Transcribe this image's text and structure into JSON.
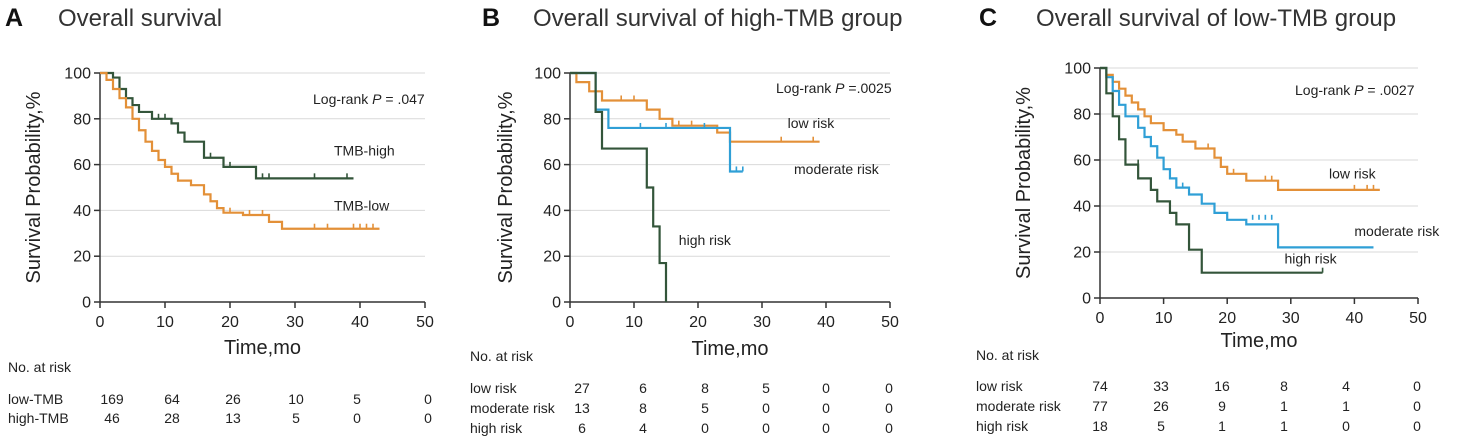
{
  "colors": {
    "orange": "#E39038",
    "green": "#33553A",
    "blue": "#2F9FD6",
    "axis": "#333333",
    "grid": "#D9D9D9"
  },
  "chart_data": [
    {
      "type": "line",
      "panel_letter": "A",
      "title": "Overall survival",
      "xlabel": "Time,mo",
      "ylabel": "Survival Probability,%",
      "xlim": [
        0,
        50
      ],
      "ylim": [
        0,
        100
      ],
      "xticks": [
        "0",
        "10",
        "20",
        "30",
        "40",
        "50"
      ],
      "yticks": [
        "0",
        "20",
        "40",
        "60",
        "80",
        "100"
      ],
      "grid": true,
      "pvalue_label": "Log-rank ",
      "pvalue_p": "P",
      "pvalue_value": " = .047",
      "series": [
        {
          "name": "TMB-high",
          "color": "#33553A",
          "label_at": [
            36,
            64
          ],
          "steps": [
            [
              0,
              100
            ],
            [
              2,
              98
            ],
            [
              3,
              93
            ],
            [
              4,
              89
            ],
            [
              5,
              86
            ],
            [
              6,
              83
            ],
            [
              8,
              80
            ],
            [
              11,
              78
            ],
            [
              12,
              74
            ],
            [
              13,
              70
            ],
            [
              16,
              63
            ],
            [
              19,
              59
            ],
            [
              24,
              54
            ],
            [
              39,
              54
            ]
          ],
          "censors": [
            [
              9,
              80
            ],
            [
              10,
              80
            ],
            [
              17,
              63
            ],
            [
              20,
              59
            ],
            [
              25,
              54
            ],
            [
              26,
              54
            ],
            [
              33,
              54
            ],
            [
              38,
              54
            ]
          ]
        },
        {
          "name": "TMB-low",
          "color": "#E39038",
          "label_at": [
            36,
            40
          ],
          "steps": [
            [
              0,
              100
            ],
            [
              1,
              97
            ],
            [
              2,
              93
            ],
            [
              3,
              89
            ],
            [
              4,
              85
            ],
            [
              5,
              80
            ],
            [
              6,
              75
            ],
            [
              7,
              70
            ],
            [
              8,
              66
            ],
            [
              9,
              62
            ],
            [
              10,
              59
            ],
            [
              11,
              56
            ],
            [
              12,
              53
            ],
            [
              14,
              51
            ],
            [
              16,
              47
            ],
            [
              17,
              44
            ],
            [
              18,
              41
            ],
            [
              19,
              39
            ],
            [
              22,
              38
            ],
            [
              26,
              35
            ],
            [
              28,
              32
            ],
            [
              43,
              32
            ]
          ],
          "censors": [
            [
              20,
              39
            ],
            [
              23,
              38
            ],
            [
              25,
              38
            ],
            [
              33,
              32
            ],
            [
              35,
              32
            ],
            [
              39,
              32
            ],
            [
              40,
              32
            ],
            [
              41,
              32
            ],
            [
              42,
              32
            ]
          ]
        }
      ],
      "risk_table": {
        "header": "No. at risk",
        "rows": [
          {
            "label": "low-TMB",
            "values": [
              "169",
              "64",
              "26",
              "10",
              "5",
              "0"
            ]
          },
          {
            "label": "high-TMB",
            "values": [
              "46",
              "28",
              "13",
              "5",
              "0",
              "0"
            ]
          }
        ]
      }
    },
    {
      "type": "line",
      "panel_letter": "B",
      "title": "Overall survival of high-TMB group",
      "xlabel": "Time,mo",
      "ylabel": "Survival Probability,%",
      "xlim": [
        0,
        50
      ],
      "ylim": [
        0,
        100
      ],
      "xticks": [
        "0",
        "10",
        "20",
        "30",
        "40",
        "50"
      ],
      "yticks": [
        "0",
        "20",
        "40",
        "60",
        "80",
        "100"
      ],
      "grid": true,
      "pvalue_label": "Log-rank ",
      "pvalue_p": "P",
      "pvalue_value": " =.0025",
      "series": [
        {
          "name": "low risk",
          "color": "#E39038",
          "label_at": [
            34,
            76
          ],
          "steps": [
            [
              0,
              100
            ],
            [
              1,
              96
            ],
            [
              3,
              92
            ],
            [
              5,
              88
            ],
            [
              12,
              84
            ],
            [
              14,
              80
            ],
            [
              16,
              77
            ],
            [
              23,
              74
            ],
            [
              25,
              70
            ],
            [
              39,
              70
            ]
          ],
          "censors": [
            [
              8,
              88
            ],
            [
              10,
              88
            ],
            [
              16,
              77
            ],
            [
              17,
              77
            ],
            [
              19,
              77
            ],
            [
              33,
              70
            ],
            [
              38,
              70
            ]
          ]
        },
        {
          "name": "moderate risk",
          "color": "#2F9FD6",
          "label_at": [
            35,
            56
          ],
          "steps": [
            [
              0,
              100
            ],
            [
              4,
              84
            ],
            [
              6,
              76
            ],
            [
              24,
              76
            ],
            [
              25,
              57
            ],
            [
              27,
              57
            ]
          ],
          "censors": [
            [
              11,
              76
            ],
            [
              15,
              76
            ],
            [
              21,
              76
            ],
            [
              26,
              57
            ],
            [
              27,
              57
            ]
          ]
        },
        {
          "name": "high risk",
          "color": "#33553A",
          "label_at": [
            17,
            25
          ],
          "steps": [
            [
              0,
              100
            ],
            [
              4,
              83
            ],
            [
              5,
              67
            ],
            [
              11,
              67
            ],
            [
              12,
              50
            ],
            [
              13,
              33
            ],
            [
              14,
              17
            ],
            [
              15,
              0
            ]
          ],
          "censors": []
        }
      ],
      "risk_table": {
        "header": "No. at risk",
        "rows": [
          {
            "label": "low risk",
            "values": [
              "27",
              "6",
              "8",
              "5",
              "0",
              "0"
            ]
          },
          {
            "label": "moderate risk",
            "values": [
              "13",
              "8",
              "5",
              "0",
              "0",
              "0"
            ]
          },
          {
            "label": "high risk",
            "values": [
              "6",
              "4",
              "0",
              "0",
              "0",
              "0"
            ]
          }
        ]
      }
    },
    {
      "type": "line",
      "panel_letter": "C",
      "title": "Overall survival of low-TMB group",
      "xlabel": "Time,mo",
      "ylabel": "Survival Probability,%",
      "xlim": [
        0,
        50
      ],
      "ylim": [
        0,
        100
      ],
      "xticks": [
        "0",
        "10",
        "20",
        "30",
        "40",
        "50"
      ],
      "yticks": [
        "0",
        "20",
        "40",
        "60",
        "80",
        "100"
      ],
      "grid": true,
      "pvalue_label": "Log-rank ",
      "pvalue_p": "P",
      "pvalue_value": " = .0027",
      "series": [
        {
          "name": "low risk",
          "color": "#E39038",
          "label_at": [
            36,
            52
          ],
          "steps": [
            [
              0,
              100
            ],
            [
              1,
              97
            ],
            [
              2,
              94
            ],
            [
              3,
              91
            ],
            [
              4,
              88
            ],
            [
              5,
              85
            ],
            [
              6,
              82
            ],
            [
              7,
              79
            ],
            [
              8,
              76
            ],
            [
              10,
              73
            ],
            [
              12,
              71
            ],
            [
              13,
              68
            ],
            [
              15,
              65
            ],
            [
              18,
              61
            ],
            [
              19,
              57
            ],
            [
              20,
              54
            ],
            [
              23,
              51
            ],
            [
              28,
              47
            ],
            [
              44,
              47
            ]
          ],
          "censors": [
            [
              17,
              65
            ],
            [
              21,
              54
            ],
            [
              26,
              51
            ],
            [
              27,
              51
            ],
            [
              40,
              47
            ],
            [
              42,
              47
            ],
            [
              43,
              47
            ]
          ]
        },
        {
          "name": "moderate risk",
          "color": "#2F9FD6",
          "label_at": [
            40,
            27
          ],
          "steps": [
            [
              0,
              100
            ],
            [
              1,
              96
            ],
            [
              2,
              90
            ],
            [
              3,
              84
            ],
            [
              4,
              79
            ],
            [
              6,
              74
            ],
            [
              7,
              70
            ],
            [
              8,
              66
            ],
            [
              9,
              61
            ],
            [
              10,
              56
            ],
            [
              11,
              52
            ],
            [
              12,
              48
            ],
            [
              14,
              45
            ],
            [
              16,
              41
            ],
            [
              18,
              37
            ],
            [
              20,
              34
            ],
            [
              23,
              32
            ],
            [
              28,
              22
            ],
            [
              43,
              22
            ]
          ],
          "censors": [
            [
              12,
              48
            ],
            [
              13,
              48
            ],
            [
              24,
              34
            ],
            [
              25,
              34
            ],
            [
              26,
              34
            ],
            [
              27,
              34
            ]
          ]
        },
        {
          "name": "high risk",
          "color": "#33553A",
          "label_at": [
            29,
            15
          ],
          "steps": [
            [
              0,
              100
            ],
            [
              1,
              89
            ],
            [
              2,
              79
            ],
            [
              3,
              69
            ],
            [
              4,
              58
            ],
            [
              6,
              52
            ],
            [
              8,
              47
            ],
            [
              9,
              42
            ],
            [
              11,
              37
            ],
            [
              12,
              32
            ],
            [
              14,
              21
            ],
            [
              16,
              11
            ],
            [
              35,
              11
            ]
          ],
          "censors": [
            [
              6,
              58
            ],
            [
              35,
              11
            ]
          ]
        }
      ],
      "risk_table": {
        "header": "No. at risk",
        "rows": [
          {
            "label": "low risk",
            "values": [
              "74",
              "33",
              "16",
              "8",
              "4",
              "0"
            ]
          },
          {
            "label": "moderate risk",
            "values": [
              "77",
              "26",
              "9",
              "1",
              "1",
              "0"
            ]
          },
          {
            "label": "high risk",
            "values": [
              "18",
              "5",
              "1",
              "1",
              "0",
              "0"
            ]
          }
        ]
      }
    }
  ]
}
